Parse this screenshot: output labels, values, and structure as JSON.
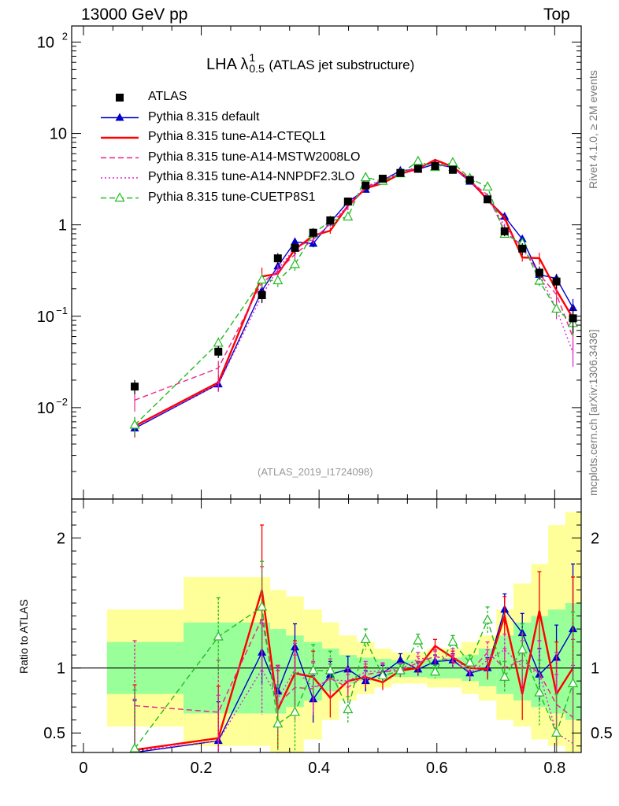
{
  "header": {
    "left": "13000 GeV pp",
    "right": "Top"
  },
  "side_labels": {
    "top": "Rivet 4.1.0, ≥ 2M events",
    "bottom": "mcplots.cern.ch [arXiv:1306.3436]"
  },
  "title": {
    "main": "LHA λ",
    "sup": "1",
    "sub": "0.5",
    "suffix": "(ATLAS jet substructure)"
  },
  "watermark": "(ATLAS_2019_I1724098)",
  "ratio_ylabel": "Ratio to ATLAS",
  "colors": {
    "data": "#000000",
    "default": "#0000cc",
    "cteql1": "#ff0000",
    "mstw": "#ee2288",
    "nnpdf": "#dd22cc",
    "cuetp": "#22bb22",
    "band_outer": "#ffff99",
    "band_inner": "#99ff99"
  },
  "legend": [
    {
      "label": "ATLAS",
      "key": "data"
    },
    {
      "label": "Pythia 8.315 default",
      "key": "default"
    },
    {
      "label": "Pythia 8.315 tune-A14-CTEQL1",
      "key": "cteql1"
    },
    {
      "label": "Pythia 8.315 tune-A14-MSTW2008LO",
      "key": "mstw"
    },
    {
      "label": "Pythia 8.315 tune-A14-NNPDF2.3LO",
      "key": "nnpdf"
    },
    {
      "label": "Pythia 8.315 tune-CUETP8S1",
      "key": "cuetp"
    }
  ],
  "chart_data": {
    "type": "line",
    "xlabel": "",
    "xlim": [
      -0.02,
      0.845
    ],
    "main": {
      "yscale": "log",
      "ylim": [
        0.001,
        150
      ],
      "yticks": [
        {
          "v": 0.01,
          "m": "10",
          "e": "−2"
        },
        {
          "v": 0.1,
          "m": "10",
          "e": "−1"
        },
        {
          "v": 1,
          "m": "1",
          "e": ""
        },
        {
          "v": 10,
          "m": "10",
          "e": ""
        },
        {
          "v": 100,
          "m": "10",
          "e": "2"
        }
      ]
    },
    "ratio": {
      "ylim": [
        0.35,
        2.3
      ],
      "yticks": [
        0.5,
        1,
        2
      ],
      "ylabel": "Ratio to ATLAS"
    },
    "xticks": [
      0,
      0.2,
      0.4,
      0.6,
      0.8
    ],
    "xtick_labels": [
      "0",
      "0.2",
      "0.4",
      "0.6",
      "0.8"
    ],
    "bin_edges": [
      0.04,
      0.17,
      0.29,
      0.317,
      0.344,
      0.374,
      0.405,
      0.434,
      0.464,
      0.494,
      0.523,
      0.553,
      0.583,
      0.612,
      0.642,
      0.671,
      0.701,
      0.73,
      0.76,
      0.789,
      0.818,
      0.845
    ],
    "series": [
      {
        "name": "ATLAS",
        "key": "data",
        "x": [
          0.087,
          0.229,
          0.303,
          0.33,
          0.359,
          0.39,
          0.419,
          0.449,
          0.479,
          0.508,
          0.538,
          0.568,
          0.597,
          0.627,
          0.656,
          0.686,
          0.715,
          0.745,
          0.774,
          0.803,
          0.831
        ],
        "y": [
          0.017,
          0.041,
          0.17,
          0.43,
          0.56,
          0.82,
          1.12,
          1.8,
          2.7,
          3.2,
          3.7,
          4.1,
          4.4,
          4.0,
          3.1,
          1.9,
          0.85,
          0.55,
          0.3,
          0.24,
          0.095
        ],
        "err_up": [
          0.003,
          0.006,
          0.03,
          0.06,
          0.08,
          0.1,
          0.12,
          0.15,
          0.2,
          0.2,
          0.2,
          0.2,
          0.2,
          0.2,
          0.2,
          0.15,
          0.1,
          0.08,
          0.05,
          0.04,
          0.03
        ],
        "err_dn": [
          0.003,
          0.006,
          0.03,
          0.06,
          0.08,
          0.1,
          0.12,
          0.15,
          0.2,
          0.2,
          0.2,
          0.2,
          0.2,
          0.2,
          0.2,
          0.15,
          0.1,
          0.08,
          0.05,
          0.04,
          0.03
        ]
      },
      {
        "name": "Pythia 8.315 default",
        "key": "default",
        "style": "solid",
        "marker": "tri",
        "ratio": [
          0.35,
          0.44,
          1.12,
          0.82,
          1.16,
          0.76,
          0.95,
          0.99,
          0.9,
          0.96,
          1.06,
          0.99,
          1.05,
          1.06,
          0.96,
          1.0,
          1.45,
          1.27,
          0.95,
          1.08,
          1.3
        ],
        "rerr": [
          0.4,
          0.3,
          0.25,
          0.2,
          0.18,
          0.18,
          0.1,
          0.1,
          0.08,
          0.06,
          0.05,
          0.05,
          0.05,
          0.05,
          0.06,
          0.08,
          0.12,
          0.15,
          0.2,
          0.25,
          0.5
        ]
      },
      {
        "name": "Pythia 8.315 tune-A14-CTEQL1",
        "key": "cteql1",
        "style": "solid",
        "marker": "none",
        "ratio": [
          0.37,
          0.46,
          1.6,
          0.68,
          0.96,
          0.93,
          0.77,
          0.9,
          0.93,
          0.89,
          0.98,
          1.0,
          1.17,
          1.08,
          1.0,
          0.99,
          1.4,
          0.8,
          1.44,
          0.8,
          1.0
        ],
        "rerr": [
          0.5,
          0.4,
          0.5,
          0.3,
          0.25,
          0.2,
          0.15,
          0.1,
          0.08,
          0.06,
          0.05,
          0.05,
          0.05,
          0.05,
          0.06,
          0.08,
          0.15,
          0.2,
          0.3,
          0.4,
          0.7
        ]
      },
      {
        "name": "Pythia 8.315 tune-A14-MSTW2008LO",
        "key": "mstw",
        "style": "dash",
        "marker": "none",
        "ratio": [
          0.71,
          0.66,
          1.38,
          0.72,
          0.85,
          0.84,
          0.92,
          0.85,
          0.95,
          0.97,
          0.98,
          1.04,
          1.09,
          1.05,
          0.97,
          1.12,
          1.0,
          1.06,
          0.96,
          0.72,
          0.62
        ],
        "rerr": [
          0.5,
          0.4,
          0.4,
          0.3,
          0.25,
          0.2,
          0.15,
          0.1,
          0.08,
          0.06,
          0.05,
          0.05,
          0.05,
          0.05,
          0.06,
          0.08,
          0.15,
          0.2,
          0.25,
          0.4,
          0.6
        ]
      },
      {
        "name": "Pythia 8.315 tune-A14-NNPDF2.3LO",
        "key": "nnpdf",
        "style": "dot",
        "marker": "none",
        "ratio": [
          0.36,
          0.44,
          0.99,
          0.76,
          0.99,
          0.85,
          0.91,
          0.9,
          0.97,
          0.98,
          0.99,
          1.07,
          1.08,
          1.1,
          0.96,
          1.06,
          1.14,
          1.01,
          0.96,
          0.5,
          0.42
        ],
        "rerr": [
          0.4,
          0.35,
          0.35,
          0.25,
          0.2,
          0.2,
          0.12,
          0.1,
          0.08,
          0.06,
          0.05,
          0.05,
          0.05,
          0.05,
          0.06,
          0.08,
          0.12,
          0.2,
          0.25,
          0.45,
          0.6
        ]
      },
      {
        "name": "Pythia 8.315 tune-CUETP8S1",
        "key": "cuetp",
        "style": "dash",
        "marker": "otri",
        "ratio": [
          0.38,
          1.24,
          1.47,
          0.57,
          0.66,
          0.98,
          0.98,
          0.68,
          1.22,
          0.94,
          0.98,
          1.21,
          0.97,
          1.2,
          1.04,
          1.37,
          0.93,
          1.14,
          0.81,
          0.5,
          0.88
        ],
        "rerr": [
          0.45,
          0.3,
          0.35,
          0.3,
          0.3,
          0.2,
          0.15,
          0.1,
          0.08,
          0.06,
          0.05,
          0.05,
          0.05,
          0.05,
          0.06,
          0.1,
          0.12,
          0.2,
          0.25,
          0.3,
          0.55
        ]
      }
    ],
    "band_outer": [
      [
        0.55,
        1.45
      ],
      [
        0.4,
        1.7
      ],
      [
        0.4,
        1.7
      ],
      [
        0.35,
        1.6
      ],
      [
        0.35,
        1.55
      ],
      [
        0.45,
        1.45
      ],
      [
        0.6,
        1.35
      ],
      [
        0.75,
        1.25
      ],
      [
        0.8,
        1.2
      ],
      [
        0.85,
        1.15
      ],
      [
        0.88,
        1.12
      ],
      [
        0.88,
        1.12
      ],
      [
        0.85,
        1.15
      ],
      [
        0.85,
        1.15
      ],
      [
        0.8,
        1.2
      ],
      [
        0.75,
        1.25
      ],
      [
        0.6,
        1.45
      ],
      [
        0.55,
        1.65
      ],
      [
        0.45,
        1.8
      ],
      [
        0.4,
        2.1
      ],
      [
        0.35,
        2.2
      ]
    ],
    "band_inner": [
      [
        0.8,
        1.2
      ],
      [
        0.65,
        1.35
      ],
      [
        0.65,
        1.35
      ],
      [
        0.65,
        1.3
      ],
      [
        0.7,
        1.25
      ],
      [
        0.75,
        1.2
      ],
      [
        0.82,
        1.15
      ],
      [
        0.88,
        1.1
      ],
      [
        0.9,
        1.08
      ],
      [
        0.92,
        1.07
      ],
      [
        0.93,
        1.06
      ],
      [
        0.93,
        1.06
      ],
      [
        0.92,
        1.07
      ],
      [
        0.92,
        1.08
      ],
      [
        0.9,
        1.1
      ],
      [
        0.86,
        1.15
      ],
      [
        0.8,
        1.25
      ],
      [
        0.75,
        1.35
      ],
      [
        0.7,
        1.4
      ],
      [
        0.65,
        1.45
      ],
      [
        0.6,
        1.5
      ]
    ]
  }
}
